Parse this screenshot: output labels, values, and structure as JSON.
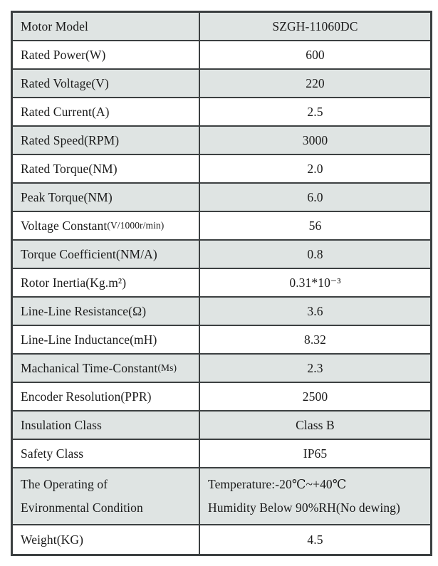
{
  "colors": {
    "row_shaded": "#dfe4e3",
    "row_plain": "#ffffff",
    "border": "#3c4041",
    "text": "#1b1b1b"
  },
  "table": {
    "rows": [
      {
        "label": "Motor Model",
        "note": "",
        "value": "SZGH-11060DC"
      },
      {
        "label": "Rated Power(W)",
        "note": "",
        "value": "600"
      },
      {
        "label": "Rated Voltage(V)",
        "note": "",
        "value": "220"
      },
      {
        "label": "Rated Current(A)",
        "note": "",
        "value": "2.5"
      },
      {
        "label": "Rated Speed(RPM)",
        "note": "",
        "value": "3000"
      },
      {
        "label": "Rated Torque(NM)",
        "note": "",
        "value": "2.0"
      },
      {
        "label": "Peak Torque(NM)",
        "note": "",
        "value": "6.0"
      },
      {
        "label": "Voltage Constant",
        "note": "(V/1000r/min)",
        "value": "56"
      },
      {
        "label": "Torque Coefficient(NM/A)",
        "note": "",
        "value": "0.8"
      },
      {
        "label": "Rotor Inertia(Kg.m²)",
        "note": "",
        "value": "0.31*10⁻³"
      },
      {
        "label": "Line-Line Resistance(Ω)",
        "note": "",
        "value": "3.6"
      },
      {
        "label": "Line-Line Inductance(mH)",
        "note": "",
        "value": "8.32"
      },
      {
        "label": "Machanical Time-Constant",
        "note": "(Ms)",
        "value": "2.3"
      },
      {
        "label": "Encoder Resolution(PPR)",
        "note": "",
        "value": "2500"
      },
      {
        "label": "Insulation Class",
        "note": "",
        "value": "Class B"
      },
      {
        "label": "Safety Class",
        "note": "",
        "value": "IP65"
      },
      {
        "label_lines": [
          "The Operating of",
          "Evironmental Condition"
        ],
        "value_lines": [
          "Temperature:-20℃~+40℃",
          "Humidity Below 90%RH(No dewing)"
        ]
      },
      {
        "label": "Weight(KG)",
        "note": "",
        "value": "4.5"
      }
    ]
  }
}
